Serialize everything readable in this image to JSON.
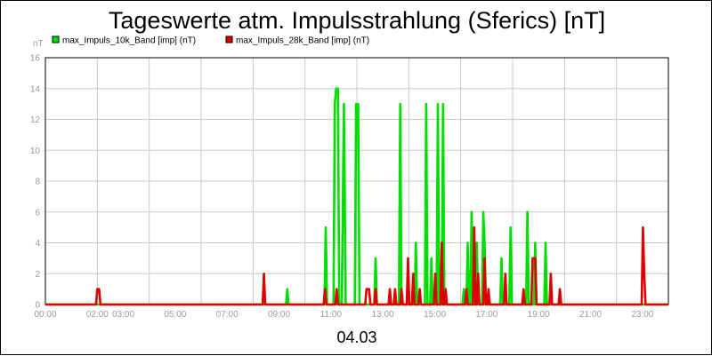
{
  "chart_data": {
    "type": "line",
    "title": "Tageswerte atm. Impulsstrahlung (Sferics) [nT]",
    "ylabel": "nT",
    "xlabel": "04.03",
    "ylim": [
      0,
      16
    ],
    "y_ticks": [
      0,
      2,
      4,
      6,
      8,
      10,
      12,
      14,
      16
    ],
    "xlim_hours": [
      0,
      24
    ],
    "x_tick_labels": [
      {
        "hour": 0,
        "label": "00:00"
      },
      {
        "hour": 2,
        "label": "02:00"
      },
      {
        "hour": 3,
        "label": "03:00"
      },
      {
        "hour": 5,
        "label": "05:00"
      },
      {
        "hour": 7,
        "label": "07:00"
      },
      {
        "hour": 9,
        "label": "09:00"
      },
      {
        "hour": 11,
        "label": "11:00"
      },
      {
        "hour": 13,
        "label": "13:00"
      },
      {
        "hour": 15,
        "label": "15:00"
      },
      {
        "hour": 17,
        "label": "17:00"
      },
      {
        "hour": 19,
        "label": "19:00"
      },
      {
        "hour": 21,
        "label": "21:00"
      },
      {
        "hour": 23,
        "label": "23:00"
      }
    ],
    "grid": true,
    "legend_position": "top-left",
    "series": [
      {
        "name": "max_Impuls_10k_Band [imp] (nT)",
        "color": "#00dd00",
        "points": [
          [
            0,
            0
          ],
          [
            9.27,
            0
          ],
          [
            9.32,
            1
          ],
          [
            9.37,
            0
          ],
          [
            10.75,
            0
          ],
          [
            10.8,
            5
          ],
          [
            10.85,
            0
          ],
          [
            11.1,
            0
          ],
          [
            11.15,
            13
          ],
          [
            11.2,
            14
          ],
          [
            11.27,
            14
          ],
          [
            11.32,
            0
          ],
          [
            11.42,
            0
          ],
          [
            11.5,
            13
          ],
          [
            11.57,
            0
          ],
          [
            11.92,
            0
          ],
          [
            11.97,
            13
          ],
          [
            12.05,
            13
          ],
          [
            12.1,
            0
          ],
          [
            12.67,
            0
          ],
          [
            12.72,
            3
          ],
          [
            12.77,
            0
          ],
          [
            13.62,
            0
          ],
          [
            13.67,
            13
          ],
          [
            13.72,
            0
          ],
          [
            14.22,
            0
          ],
          [
            14.27,
            4
          ],
          [
            14.32,
            0
          ],
          [
            14.62,
            0
          ],
          [
            14.67,
            13
          ],
          [
            14.72,
            0
          ],
          [
            14.82,
            0
          ],
          [
            14.87,
            3
          ],
          [
            14.92,
            0
          ],
          [
            15.07,
            0
          ],
          [
            15.12,
            13
          ],
          [
            15.17,
            0
          ],
          [
            15.27,
            0
          ],
          [
            15.32,
            13
          ],
          [
            15.37,
            0
          ],
          [
            16.07,
            0
          ],
          [
            16.12,
            1
          ],
          [
            16.17,
            0
          ],
          [
            16.22,
            0
          ],
          [
            16.27,
            4
          ],
          [
            16.32,
            0
          ],
          [
            16.37,
            0
          ],
          [
            16.42,
            6
          ],
          [
            16.47,
            0
          ],
          [
            16.57,
            0
          ],
          [
            16.62,
            4
          ],
          [
            16.67,
            0
          ],
          [
            16.82,
            0
          ],
          [
            16.87,
            6
          ],
          [
            16.92,
            4
          ],
          [
            16.97,
            0
          ],
          [
            17.52,
            0
          ],
          [
            17.57,
            3
          ],
          [
            17.62,
            0
          ],
          [
            17.87,
            0
          ],
          [
            17.92,
            5
          ],
          [
            17.97,
            0
          ],
          [
            18.52,
            0
          ],
          [
            18.57,
            6
          ],
          [
            18.62,
            0
          ],
          [
            18.82,
            0
          ],
          [
            18.87,
            4
          ],
          [
            18.92,
            0
          ],
          [
            19.22,
            0
          ],
          [
            19.27,
            4
          ],
          [
            19.32,
            0
          ],
          [
            24,
            0
          ]
        ]
      },
      {
        "name": "max_Impuls_28k_Band [imp] (nT)",
        "color": "#dd0000",
        "points": [
          [
            0,
            0
          ],
          [
            1.95,
            0
          ],
          [
            2.0,
            1
          ],
          [
            2.07,
            1
          ],
          [
            2.12,
            0
          ],
          [
            8.37,
            0
          ],
          [
            8.42,
            2
          ],
          [
            8.47,
            0
          ],
          [
            10.72,
            0
          ],
          [
            10.77,
            1
          ],
          [
            10.82,
            0
          ],
          [
            11.17,
            0
          ],
          [
            11.22,
            1
          ],
          [
            11.27,
            0
          ],
          [
            12.32,
            0
          ],
          [
            12.37,
            1
          ],
          [
            12.47,
            1
          ],
          [
            12.52,
            0
          ],
          [
            12.67,
            0
          ],
          [
            12.72,
            1
          ],
          [
            12.77,
            0
          ],
          [
            13.22,
            0
          ],
          [
            13.27,
            1
          ],
          [
            13.32,
            0
          ],
          [
            13.42,
            0
          ],
          [
            13.47,
            1
          ],
          [
            13.52,
            0
          ],
          [
            13.67,
            0
          ],
          [
            13.72,
            1
          ],
          [
            13.77,
            0
          ],
          [
            13.92,
            0
          ],
          [
            13.97,
            3
          ],
          [
            14.02,
            0
          ],
          [
            14.12,
            0
          ],
          [
            14.17,
            2
          ],
          [
            14.22,
            0
          ],
          [
            14.37,
            0
          ],
          [
            14.42,
            1
          ],
          [
            14.47,
            0
          ],
          [
            14.97,
            0
          ],
          [
            15.02,
            2
          ],
          [
            15.07,
            0
          ],
          [
            15.22,
            0
          ],
          [
            15.27,
            4
          ],
          [
            15.32,
            0
          ],
          [
            15.37,
            0
          ],
          [
            15.42,
            1
          ],
          [
            15.47,
            0
          ],
          [
            16.17,
            0
          ],
          [
            16.22,
            1
          ],
          [
            16.27,
            0
          ],
          [
            16.47,
            0
          ],
          [
            16.52,
            5
          ],
          [
            16.57,
            0
          ],
          [
            16.62,
            0
          ],
          [
            16.67,
            2
          ],
          [
            16.72,
            0
          ],
          [
            16.87,
            0
          ],
          [
            16.92,
            3
          ],
          [
            16.97,
            0
          ],
          [
            17.02,
            0
          ],
          [
            17.07,
            1
          ],
          [
            17.12,
            0
          ],
          [
            17.67,
            0
          ],
          [
            17.72,
            2
          ],
          [
            17.77,
            0
          ],
          [
            18.37,
            0
          ],
          [
            18.42,
            1
          ],
          [
            18.47,
            0
          ],
          [
            18.72,
            0
          ],
          [
            18.77,
            3
          ],
          [
            18.87,
            3
          ],
          [
            18.92,
            0
          ],
          [
            19.42,
            0
          ],
          [
            19.47,
            2
          ],
          [
            19.52,
            0
          ],
          [
            19.77,
            0
          ],
          [
            19.82,
            1
          ],
          [
            19.87,
            0
          ],
          [
            22.97,
            0
          ],
          [
            23.02,
            5
          ],
          [
            23.07,
            2
          ],
          [
            23.12,
            0
          ],
          [
            24,
            0
          ]
        ]
      }
    ]
  }
}
